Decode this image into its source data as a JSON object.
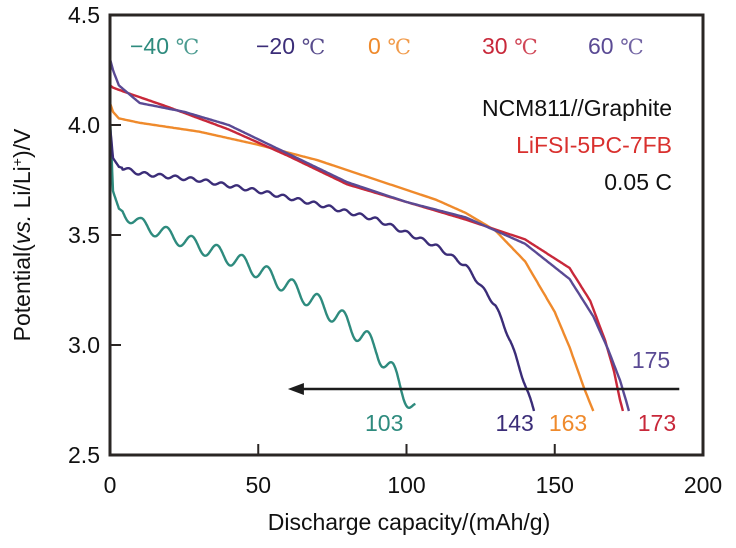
{
  "chart_data": {
    "type": "line",
    "title": "",
    "xlabel": "Discharge capacity/(mAh/g)",
    "ylabel": "Potential(vs. Li/Li⁺)/V",
    "ylabel_parts": {
      "pre": "Potential(",
      "italic": "vs.",
      "post": " Li/Li",
      "sup": "+",
      "end": ")/V"
    },
    "xlim": [
      0,
      200
    ],
    "ylim": [
      2.5,
      4.5
    ],
    "xticks": [
      0,
      50,
      100,
      150,
      200
    ],
    "yticks": [
      2.5,
      3.0,
      3.5,
      4.0,
      4.5
    ],
    "xtick_labels": [
      "0",
      "50",
      "100",
      "150",
      "200"
    ],
    "ytick_labels": [
      "2.5",
      "3.0",
      "3.5",
      "4.0",
      "4.5"
    ],
    "grid": false,
    "legend_placement": "top",
    "annotations": {
      "system": "NCM811//Graphite",
      "electrolyte": "LiFSI-5PC-7FB",
      "electrolyte_color": "#d9302e",
      "rate": "0.05 C",
      "arrow": {
        "from_x": 192,
        "to_x": 60,
        "y": 2.8
      }
    },
    "series": [
      {
        "name": "−40 ℃",
        "num": "−40",
        "unit": " ℃",
        "color": "#2e8b7e",
        "end_label": "103",
        "oscillating": true,
        "x": [
          0,
          1,
          3,
          5,
          10,
          20,
          30,
          40,
          50,
          60,
          70,
          80,
          90,
          95,
          100,
          103
        ],
        "y": [
          4.05,
          3.7,
          3.62,
          3.6,
          3.55,
          3.5,
          3.45,
          3.4,
          3.34,
          3.27,
          3.19,
          3.1,
          2.98,
          2.88,
          2.77,
          2.7
        ]
      },
      {
        "name": "−20 ℃",
        "num": "−20",
        "unit": " ℃",
        "color": "#3b2d78",
        "end_label": "143",
        "oscillating": true,
        "x": [
          0,
          1,
          3,
          10,
          30,
          50,
          70,
          90,
          110,
          120,
          130,
          135,
          140,
          143
        ],
        "y": [
          4.0,
          3.85,
          3.81,
          3.78,
          3.75,
          3.7,
          3.64,
          3.57,
          3.45,
          3.36,
          3.18,
          3.02,
          2.82,
          2.7
        ],
        "label_color": "#3b2d78"
      },
      {
        "name": "0 ℃",
        "num": "0",
        "unit": " ℃",
        "color": "#ef8a2c",
        "end_label": "163",
        "oscillating": false,
        "x": [
          0,
          1,
          3,
          10,
          30,
          50,
          70,
          90,
          110,
          120,
          130,
          140,
          150,
          155,
          160,
          163
        ],
        "y": [
          4.1,
          4.06,
          4.03,
          4.01,
          3.97,
          3.91,
          3.84,
          3.75,
          3.66,
          3.6,
          3.52,
          3.38,
          3.15,
          2.99,
          2.8,
          2.7
        ]
      },
      {
        "name": "30 ℃",
        "num": "30",
        "unit": " ℃",
        "color": "#c8283a",
        "end_label": "173",
        "oscillating": false,
        "x": [
          0,
          1,
          5,
          20,
          40,
          60,
          80,
          100,
          120,
          140,
          155,
          162,
          167,
          170,
          172,
          173
        ],
        "y": [
          4.18,
          4.17,
          4.15,
          4.08,
          3.98,
          3.86,
          3.73,
          3.65,
          3.57,
          3.48,
          3.35,
          3.2,
          3.02,
          2.88,
          2.75,
          2.7
        ]
      },
      {
        "name": "60 ℃",
        "num": "60",
        "unit": " ℃",
        "color": "#5a4a94",
        "end_label": "175",
        "oscillating": false,
        "x": [
          0,
          1,
          3,
          10,
          25,
          40,
          60,
          80,
          100,
          120,
          140,
          155,
          163,
          168,
          172,
          174,
          175
        ],
        "y": [
          4.3,
          4.25,
          4.18,
          4.1,
          4.06,
          4.0,
          3.87,
          3.74,
          3.65,
          3.58,
          3.46,
          3.3,
          3.13,
          2.98,
          2.84,
          2.75,
          2.7
        ]
      }
    ]
  }
}
